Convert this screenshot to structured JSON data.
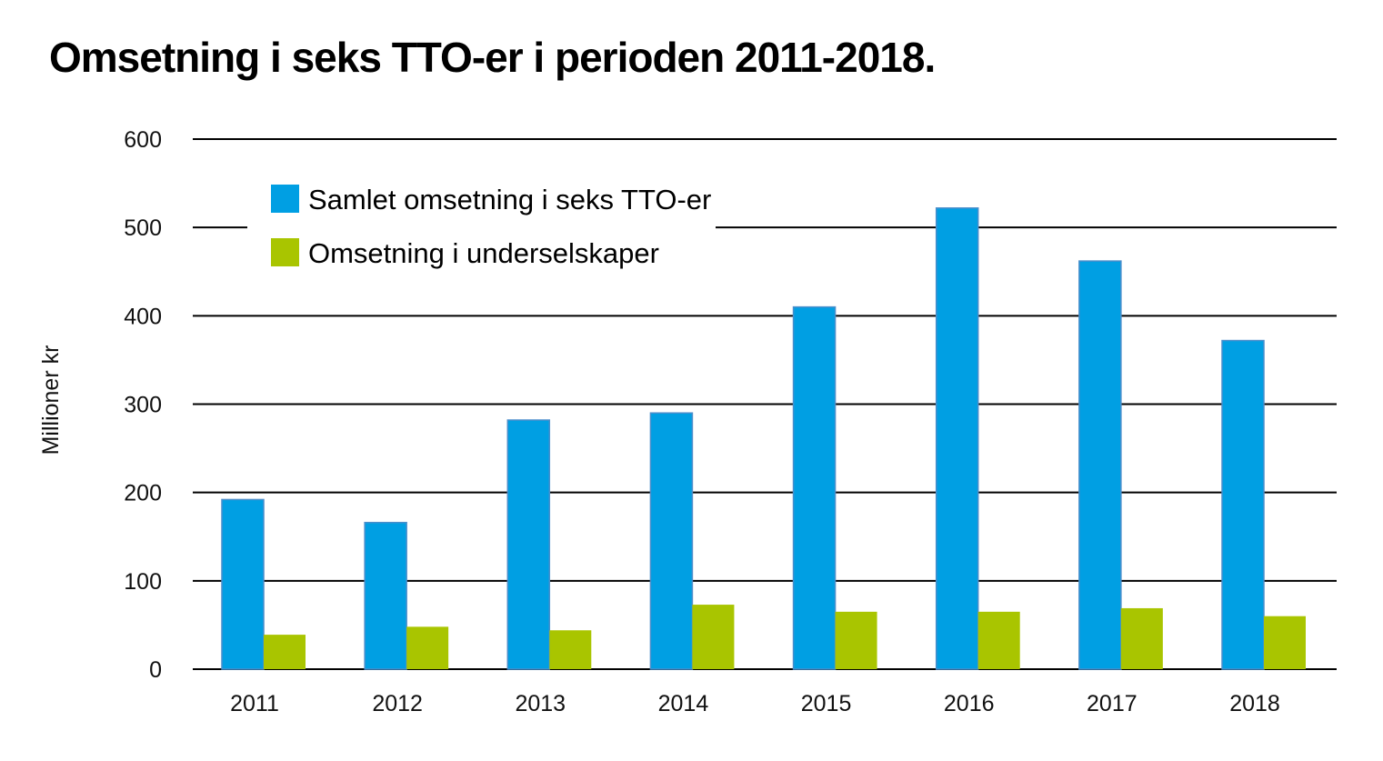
{
  "chart_data": {
    "type": "bar",
    "title": "Omsetning i seks TTO-er i perioden 2011-2018.",
    "ylabel": "Millioner kr",
    "xlabel": "",
    "ylim": [
      0,
      600
    ],
    "yticks": [
      0,
      100,
      200,
      300,
      400,
      500,
      600
    ],
    "grid": true,
    "legend_position": "top-left",
    "categories": [
      "2011",
      "2012",
      "2013",
      "2014",
      "2015",
      "2016",
      "2017",
      "2018"
    ],
    "series": [
      {
        "name": "Samlet omsetning i seks TTO-er",
        "color": "#009fe3",
        "values": [
          192,
          166,
          282,
          290,
          410,
          522,
          462,
          372
        ]
      },
      {
        "name": "Omsetning i underselskaper",
        "color": "#a9c500",
        "values": [
          39,
          48,
          44,
          73,
          65,
          65,
          69,
          60
        ]
      }
    ]
  }
}
